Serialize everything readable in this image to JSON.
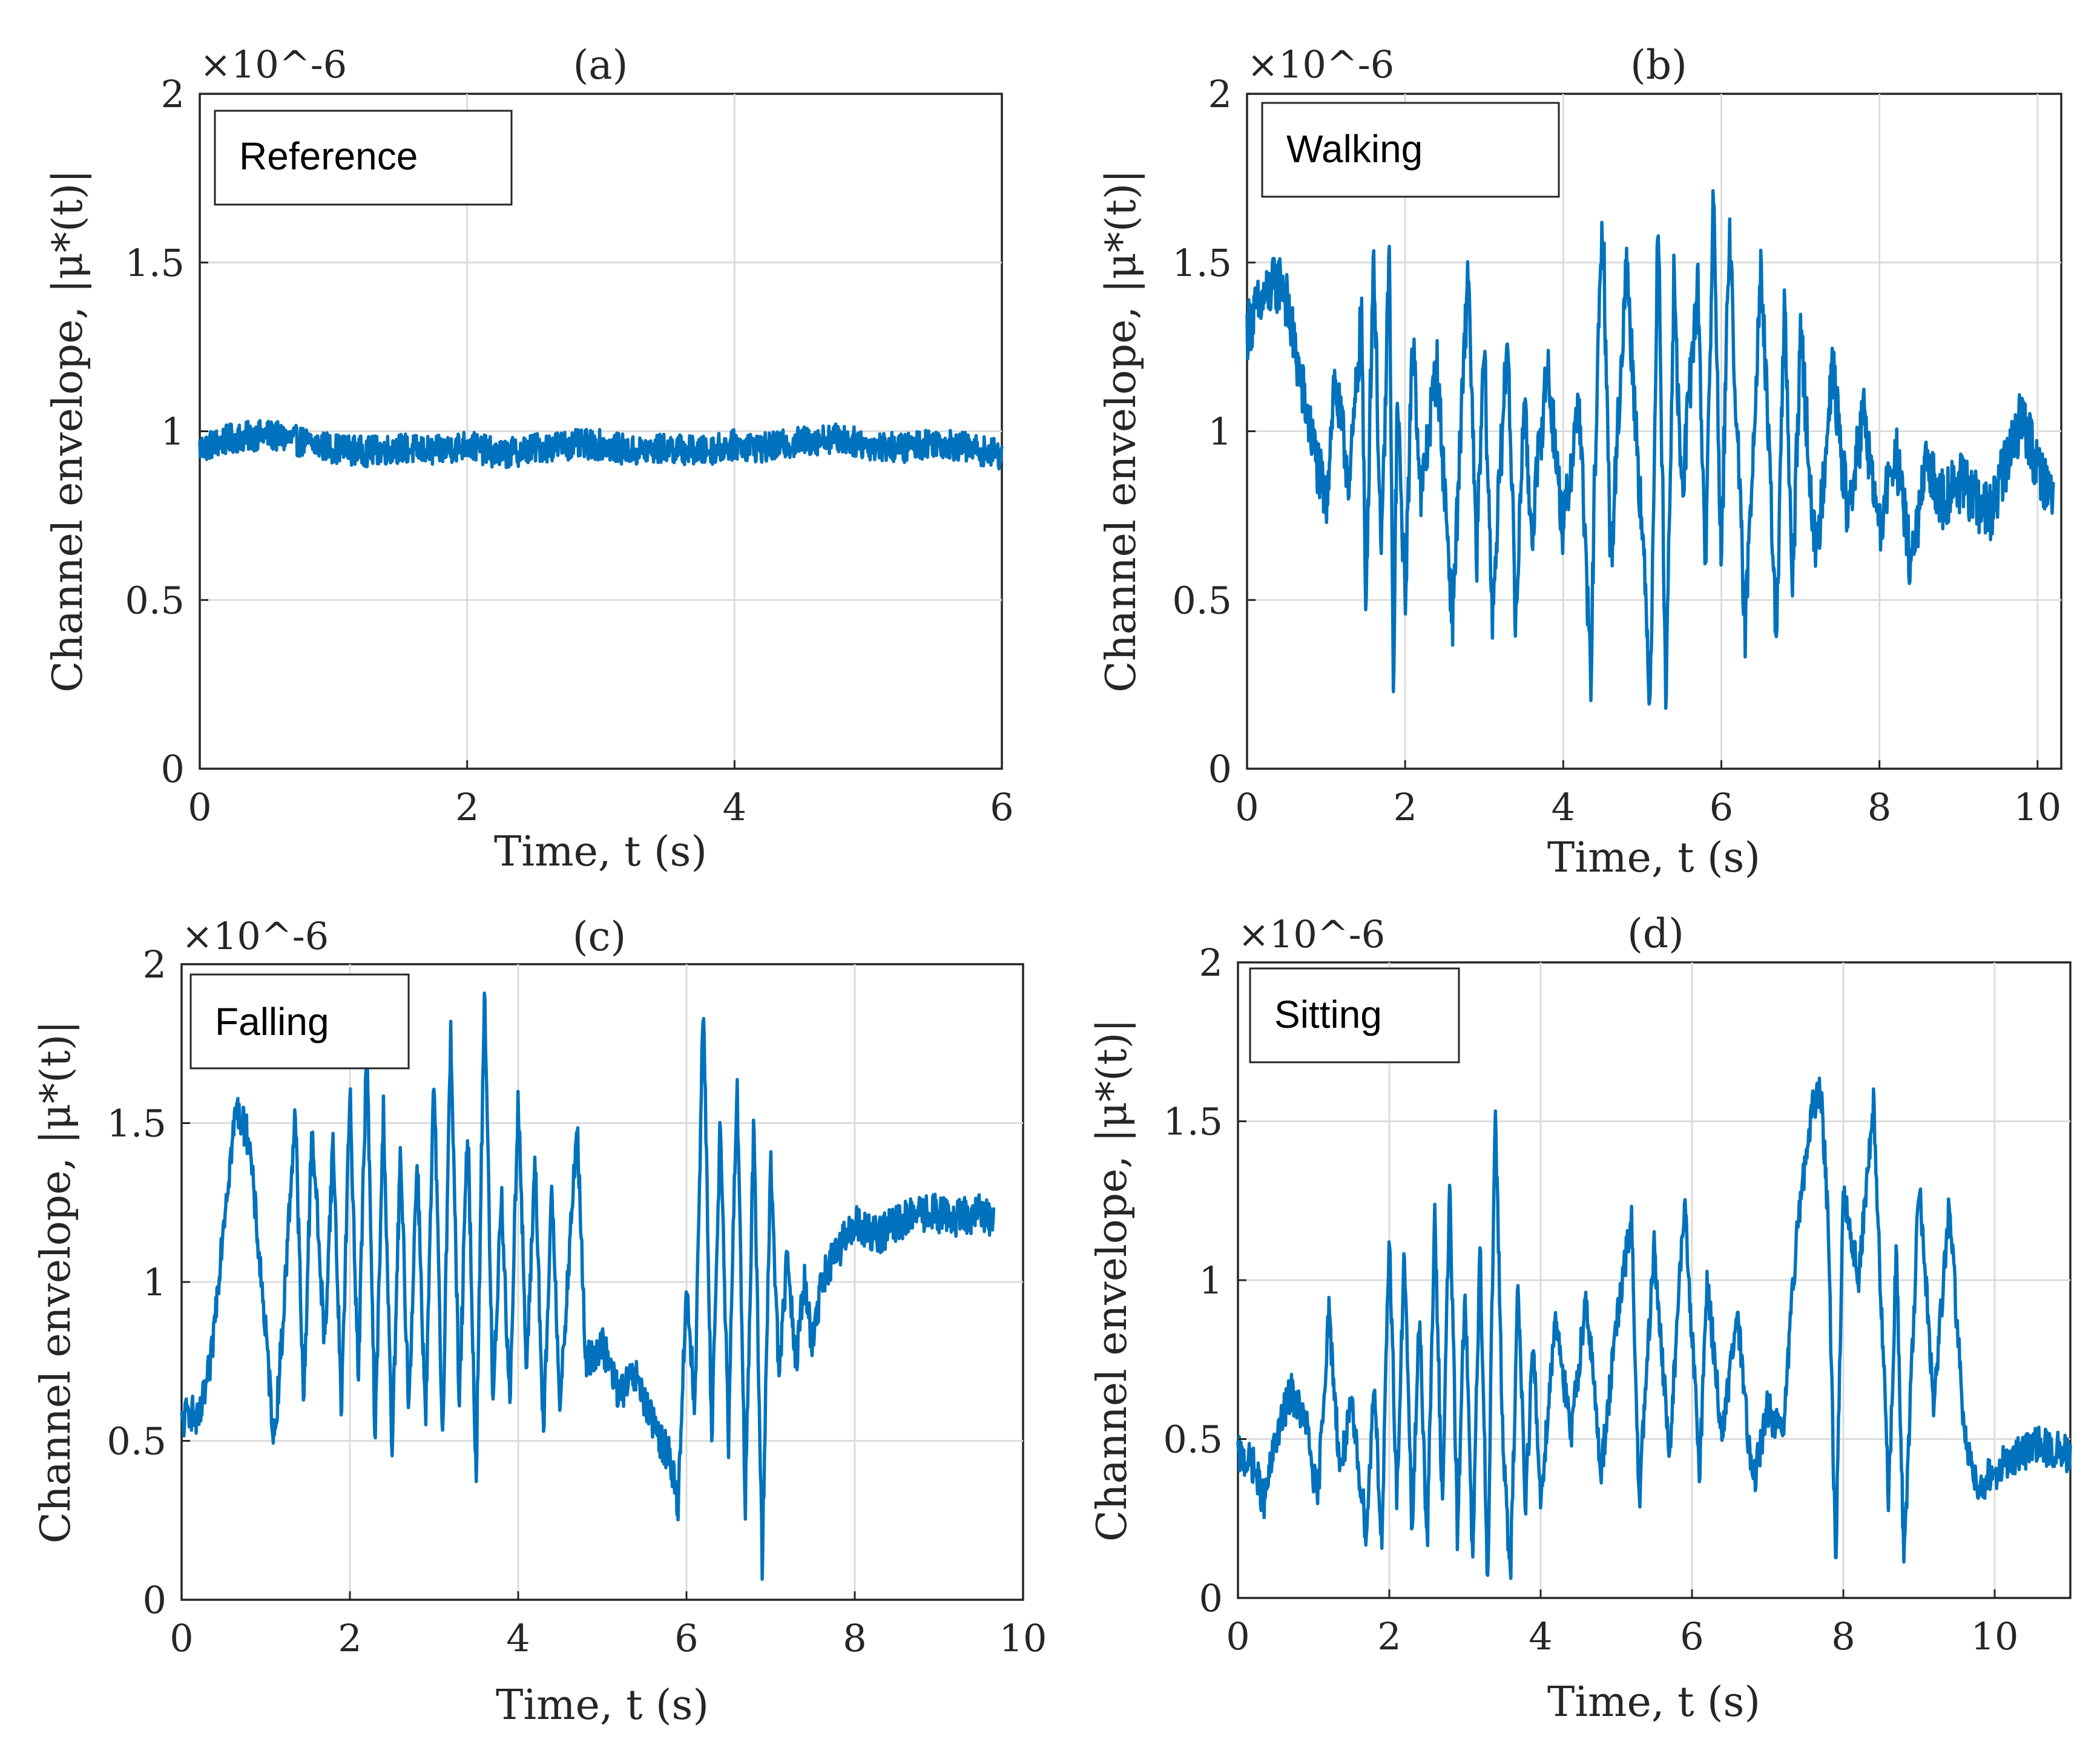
{
  "figure": {
    "colors": {
      "line": "#0072BD",
      "axes": "#262626",
      "grid": "#dcdcdc"
    }
  },
  "chart_data": [
    {
      "id": "a",
      "type": "line",
      "title": "(a)",
      "legend": "Reference",
      "xlabel": "Time, t (s)",
      "ylabel": "Channel envelope, |μ*(t)|",
      "y_exponent": "×10^-6",
      "xlim": [
        0,
        6
      ],
      "ylim": [
        0,
        2
      ],
      "xticks": [
        0,
        2,
        4,
        6
      ],
      "xtick_labels": [
        "0",
        "2",
        "4",
        "6"
      ],
      "yticks": [
        0,
        0.5,
        1,
        1.5,
        2
      ],
      "ytick_labels": [
        "0",
        "0.5",
        "1",
        "1.5",
        "2"
      ],
      "grid": true,
      "series": [
        {
          "name": "Reference",
          "x": [
            0,
            0.25,
            0.5,
            0.75,
            1.0,
            1.25,
            1.5,
            1.75,
            2.0,
            2.25,
            2.5,
            2.75,
            3.0,
            3.25,
            3.5,
            3.75,
            4.0,
            4.25,
            4.5,
            4.75,
            5.0,
            5.25,
            5.5,
            5.75,
            6.0
          ],
          "y": [
            0.95,
            0.98,
            0.99,
            0.97,
            0.95,
            0.94,
            0.95,
            0.94,
            0.96,
            0.93,
            0.95,
            0.96,
            0.96,
            0.94,
            0.95,
            0.94,
            0.96,
            0.95,
            0.97,
            0.98,
            0.96,
            0.95,
            0.97,
            0.95,
            0.93
          ],
          "noise": 0.045
        }
      ]
    },
    {
      "id": "b",
      "type": "line",
      "title": "(b)",
      "legend": "Walking",
      "xlabel": "Time, t (s)",
      "ylabel": "Channel envelope, |μ*(t)|",
      "y_exponent": "×10^-6",
      "xlim": [
        0,
        10.3
      ],
      "ylim": [
        0,
        2
      ],
      "xticks": [
        0,
        2,
        4,
        6,
        8,
        10
      ],
      "xtick_labels": [
        "0",
        "2",
        "4",
        "6",
        "8",
        "10"
      ],
      "yticks": [
        0,
        0.5,
        1,
        1.5,
        2
      ],
      "ytick_labels": [
        "0",
        "0.5",
        "1",
        "1.5",
        "2"
      ],
      "grid": true,
      "series": [
        {
          "name": "Walking",
          "x": [
            0,
            0.1,
            0.3,
            0.45,
            0.6,
            0.8,
            1.0,
            1.1,
            1.3,
            1.45,
            1.5,
            1.6,
            1.7,
            1.8,
            1.85,
            1.9,
            2.0,
            2.1,
            2.2,
            2.4,
            2.6,
            2.8,
            2.9,
            3.0,
            3.1,
            3.3,
            3.4,
            3.5,
            3.6,
            3.8,
            4.0,
            4.2,
            4.35,
            4.4,
            4.5,
            4.6,
            4.8,
            5.0,
            5.1,
            5.2,
            5.3,
            5.4,
            5.5,
            5.7,
            5.8,
            5.9,
            6.0,
            6.1,
            6.3,
            6.5,
            6.7,
            6.8,
            6.9,
            7.0,
            7.2,
            7.4,
            7.6,
            7.8,
            8.0,
            8.2,
            8.4,
            8.6,
            8.8,
            9.0,
            9.2,
            9.4,
            9.6,
            9.8,
            10.0,
            10.2
          ],
          "y": [
            1.3,
            1.35,
            1.42,
            1.45,
            1.25,
            1.0,
            0.78,
            1.15,
            0.85,
            1.35,
            0.45,
            1.55,
            0.6,
            1.55,
            0.22,
            1.1,
            0.5,
            1.3,
            0.8,
            1.2,
            0.45,
            1.5,
            0.6,
            1.25,
            0.45,
            1.3,
            0.4,
            1.1,
            0.7,
            1.2,
            0.7,
            1.1,
            0.25,
            0.9,
            1.65,
            0.6,
            1.5,
            0.7,
            0.2,
            1.65,
            0.2,
            1.45,
            0.8,
            1.45,
            0.6,
            1.7,
            0.6,
            1.6,
            0.4,
            1.5,
            0.38,
            1.4,
            0.5,
            1.3,
            0.6,
            1.2,
            0.75,
            1.05,
            0.7,
            0.95,
            0.6,
            0.9,
            0.8,
            0.85,
            0.8,
            0.75,
            0.9,
            1.05,
            0.9,
            0.8
          ],
          "noise": 0.09
        }
      ]
    },
    {
      "id": "c",
      "type": "line",
      "title": "(c)",
      "legend": "Falling",
      "xlabel": "Time, t (s)",
      "ylabel": "Channel envelope, |μ*(t)|",
      "y_exponent": "×10^-6",
      "xlim": [
        0,
        10
      ],
      "ylim": [
        0,
        2
      ],
      "xticks": [
        0,
        2,
        4,
        6,
        8,
        10
      ],
      "xtick_labels": [
        "0",
        "2",
        "4",
        "6",
        "8",
        "10"
      ],
      "yticks": [
        0,
        0.5,
        1,
        1.5,
        2
      ],
      "ytick_labels": [
        "0",
        "0.5",
        "1",
        "1.5",
        "2"
      ],
      "grid": true,
      "series": [
        {
          "name": "Falling",
          "x": [
            0,
            0.1,
            0.2,
            0.35,
            0.5,
            0.65,
            0.8,
            0.95,
            1.1,
            1.2,
            1.35,
            1.45,
            1.55,
            1.7,
            1.8,
            1.9,
            2.0,
            2.1,
            2.2,
            2.3,
            2.4,
            2.5,
            2.6,
            2.7,
            2.8,
            2.9,
            3.0,
            3.1,
            3.2,
            3.3,
            3.4,
            3.5,
            3.6,
            3.7,
            3.8,
            3.9,
            4.0,
            4.1,
            4.2,
            4.3,
            4.4,
            4.5,
            4.7,
            4.8,
            5.0,
            5.2,
            5.4,
            5.6,
            5.8,
            5.9,
            6.0,
            6.1,
            6.2,
            6.3,
            6.4,
            6.5,
            6.6,
            6.7,
            6.8,
            6.9,
            7.0,
            7.1,
            7.2,
            7.3,
            7.4,
            7.5,
            7.6,
            7.8,
            8.0,
            8.3,
            8.6,
            8.9,
            9.2,
            9.5,
            9.65
          ],
          "y": [
            0.55,
            0.6,
            0.55,
            0.75,
            1.2,
            1.55,
            1.45,
            1.0,
            0.5,
            0.85,
            1.55,
            0.6,
            1.5,
            0.8,
            1.45,
            0.6,
            1.6,
            0.7,
            1.75,
            0.5,
            1.55,
            0.45,
            1.4,
            0.6,
            1.4,
            0.55,
            1.65,
            0.5,
            1.8,
            0.6,
            1.5,
            0.38,
            1.95,
            0.6,
            1.3,
            0.6,
            1.6,
            0.7,
            1.4,
            0.5,
            1.3,
            0.6,
            1.5,
            0.75,
            0.8,
            0.65,
            0.7,
            0.55,
            0.45,
            0.3,
            1.0,
            0.6,
            1.9,
            0.5,
            1.5,
            0.5,
            1.65,
            0.3,
            1.5,
            0.12,
            1.4,
            0.7,
            1.1,
            0.75,
            1.0,
            0.8,
            1.0,
            1.1,
            1.18,
            1.15,
            1.2,
            1.22,
            1.2,
            1.22,
            1.2
          ],
          "noise": 0.06
        }
      ]
    },
    {
      "id": "d",
      "type": "line",
      "title": "(d)",
      "legend": "Sitting",
      "xlabel": "Time, t (s)",
      "ylabel": "Channel envelope, |μ*(t)|",
      "y_exponent": "×10^-6",
      "xlim": [
        0,
        11
      ],
      "ylim": [
        0,
        2
      ],
      "xticks": [
        0,
        2,
        4,
        6,
        8,
        10
      ],
      "xtick_labels": [
        "0",
        "2",
        "4",
        "6",
        "8",
        "10"
      ],
      "yticks": [
        0,
        0.5,
        1,
        1.5,
        2
      ],
      "ytick_labels": [
        "0",
        "0.5",
        "1",
        "1.5",
        "2"
      ],
      "grid": true,
      "series": [
        {
          "name": "Sitting",
          "x": [
            0,
            0.2,
            0.35,
            0.5,
            0.7,
            0.9,
            1.05,
            1.2,
            1.35,
            1.5,
            1.7,
            1.8,
            1.9,
            2.0,
            2.1,
            2.2,
            2.3,
            2.4,
            2.5,
            2.6,
            2.7,
            2.8,
            2.9,
            3.0,
            3.1,
            3.2,
            3.3,
            3.4,
            3.5,
            3.6,
            3.7,
            3.8,
            3.9,
            4.0,
            4.2,
            4.4,
            4.6,
            4.8,
            5.0,
            5.2,
            5.3,
            5.5,
            5.7,
            5.9,
            6.1,
            6.2,
            6.4,
            6.6,
            6.8,
            7.0,
            7.2,
            7.4,
            7.6,
            7.7,
            7.8,
            7.9,
            8.0,
            8.2,
            8.4,
            8.6,
            8.7,
            8.8,
            9.0,
            9.2,
            9.4,
            9.6,
            9.8,
            10.0,
            10.3,
            10.6,
            11.0
          ],
          "y": [
            0.45,
            0.42,
            0.3,
            0.5,
            0.65,
            0.55,
            0.3,
            0.9,
            0.4,
            0.6,
            0.2,
            0.7,
            0.15,
            1.15,
            0.3,
            1.1,
            0.2,
            0.9,
            0.15,
            1.2,
            0.3,
            1.3,
            0.2,
            1.0,
            0.1,
            1.1,
            0.05,
            1.55,
            0.5,
            0.05,
            1.0,
            0.3,
            0.8,
            0.3,
            0.9,
            0.5,
            0.95,
            0.4,
            0.85,
            1.2,
            0.3,
            1.1,
            0.45,
            1.25,
            0.4,
            1.0,
            0.5,
            0.9,
            0.35,
            0.6,
            0.5,
            1.2,
            1.55,
            1.6,
            1.2,
            0.1,
            1.3,
            1.0,
            1.55,
            0.3,
            1.1,
            0.1,
            1.3,
            0.6,
            1.25,
            0.5,
            0.35,
            0.4,
            0.45,
            0.48,
            0.45
          ],
          "noise": 0.06
        }
      ]
    }
  ]
}
